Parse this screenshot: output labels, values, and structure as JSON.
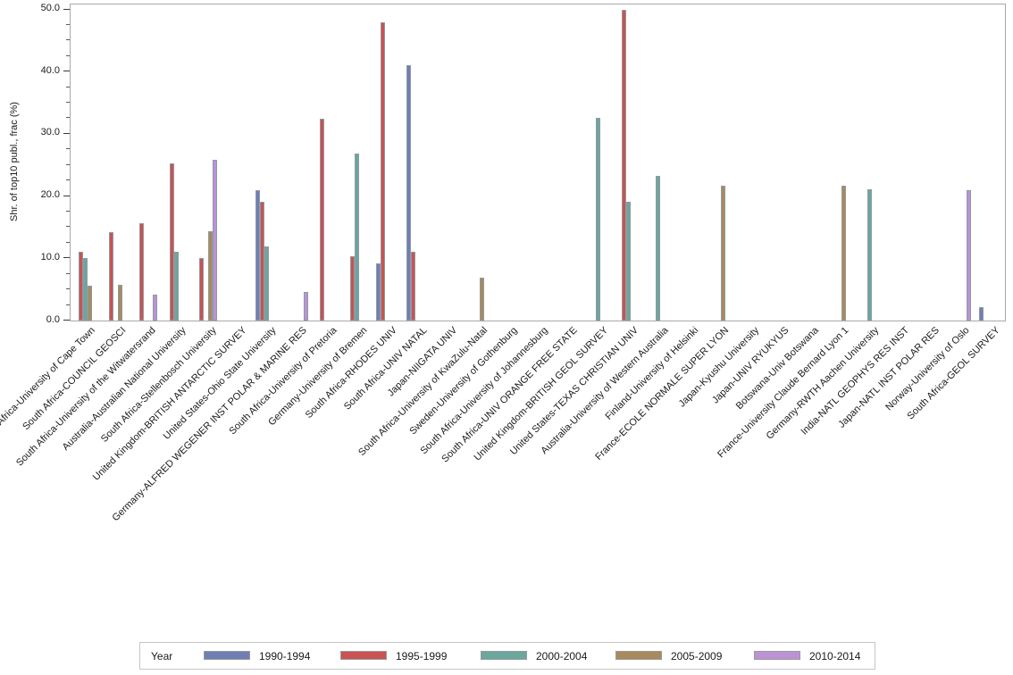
{
  "chart_data": {
    "type": "bar",
    "title": "",
    "xlabel": "",
    "ylabel": "Shr. of top10 publ., frac (%)",
    "ylim": [
      0,
      50
    ],
    "yticks": [
      0,
      10,
      20,
      30,
      40,
      50
    ],
    "ytick_labels": [
      "0.0",
      "10.0",
      "20.0",
      "30.0",
      "40.0",
      "50.0"
    ],
    "minor_tick_step": 2.5,
    "grid": false,
    "legend_title": "Year",
    "legend_position": "bottom",
    "categories": [
      "South Africa-University of Cape Town",
      "South Africa-COUNCIL GEOSCI",
      "South Africa-University of the Witwatersrand",
      "Australia-Australian National University",
      "South Africa-Stellenbosch University",
      "United Kingdom-BRITISH ANTARCTIC SURVEY",
      "United States-Ohio State University",
      "Germany-ALFRED WEGENER INST POLAR & MARINE RES",
      "South Africa-University of Pretoria",
      "Germany-University of Bremen",
      "South Africa-RHODES UNIV",
      "South Africa-UNIV NATAL",
      "Japan-NIIGATA UNIV",
      "South Africa-University of KwaZulu-Natal",
      "Sweden-University of Gothenburg",
      "South Africa-University of Johannesburg",
      "South Africa-UNIV ORANGE FREE STATE",
      "United Kingdom-BRITISH GEOL SURVEY",
      "United States-TEXAS CHRISTIAN UNIV",
      "Australia-University of Western Australia",
      "Finland-University of Helsinki",
      "France-ECOLE NORMALE SUPER LYON",
      "Japan-Kyushu University",
      "Japan-UNIV RYUKYUS",
      "Botswana-Univ Botswana",
      "France-University Claude Bernard Lyon 1",
      "Germany-RWTH Aachen University",
      "India-NATL GEOPHYS RES INST",
      "Japan-NATL INST POLAR RES",
      "Norway-University of Oslo",
      "South Africa-GEOL SURVEY"
    ],
    "series": [
      {
        "name": "1990-1994",
        "color": "#6f7eb4",
        "values": [
          null,
          null,
          null,
          null,
          null,
          null,
          21.0,
          null,
          null,
          null,
          9.2,
          41.0,
          null,
          null,
          null,
          null,
          null,
          null,
          null,
          null,
          null,
          null,
          null,
          null,
          null,
          null,
          null,
          null,
          null,
          null,
          2.2
        ]
      },
      {
        "name": "1995-1999",
        "color": "#c95252",
        "values": [
          11.0,
          14.2,
          15.7,
          25.2,
          10.1,
          null,
          19.1,
          null,
          32.4,
          10.4,
          47.9,
          11.0,
          null,
          null,
          null,
          null,
          null,
          null,
          50.0,
          null,
          null,
          null,
          null,
          null,
          null,
          null,
          null,
          null,
          null,
          null,
          null
        ]
      },
      {
        "name": "2000-2004",
        "color": "#6aa79c",
        "values": [
          10.0,
          null,
          null,
          11.0,
          null,
          null,
          11.9,
          null,
          null,
          26.8,
          null,
          null,
          null,
          null,
          null,
          null,
          null,
          32.6,
          19.1,
          23.3,
          null,
          null,
          null,
          null,
          null,
          null,
          21.1,
          null,
          null,
          null,
          null
        ]
      },
      {
        "name": "2005-2009",
        "color": "#a98a5c",
        "values": [
          5.6,
          5.7,
          null,
          null,
          14.3,
          null,
          null,
          null,
          null,
          null,
          null,
          null,
          null,
          6.9,
          null,
          null,
          null,
          null,
          null,
          null,
          null,
          21.6,
          null,
          null,
          null,
          21.6,
          null,
          null,
          null,
          null,
          null
        ]
      },
      {
        "name": "2010-2014",
        "color": "#bb92d6",
        "values": [
          null,
          null,
          4.1,
          null,
          25.8,
          null,
          null,
          4.6,
          null,
          null,
          null,
          null,
          null,
          null,
          null,
          null,
          null,
          null,
          null,
          null,
          null,
          null,
          null,
          null,
          null,
          null,
          null,
          null,
          null,
          20.9,
          null
        ]
      }
    ]
  }
}
